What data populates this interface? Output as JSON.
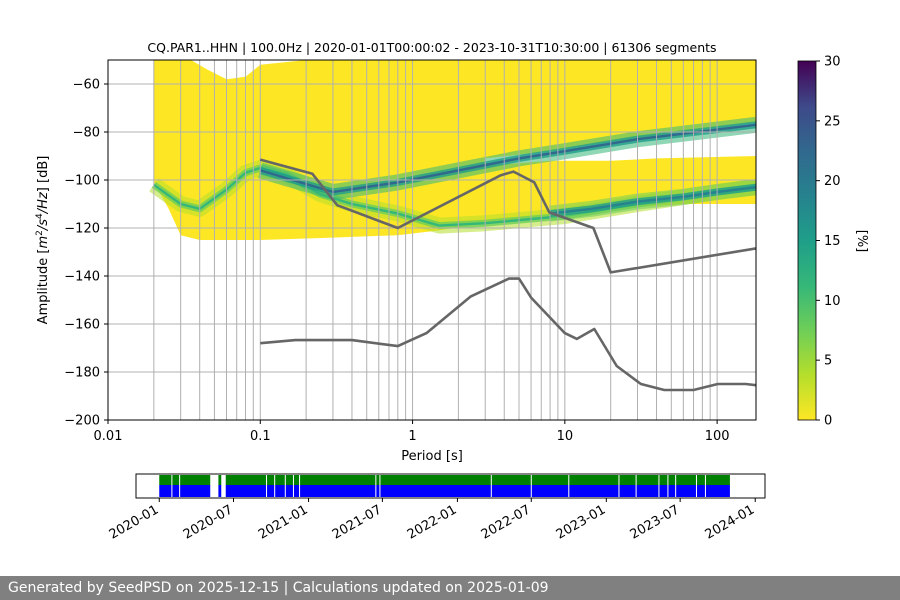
{
  "chart_data": [
    {
      "type": "heatmap",
      "title": "CQ.PAR1..HHN | 100.0Hz | 2020-01-01T00:00:02 - 2023-10-31T10:30:00 | 61306 segments",
      "xlabel": "Period [s]",
      "ylabel_parts": [
        "Amplitude [",
        "m",
        "2",
        "/",
        "s",
        "4",
        "/",
        "Hz",
        "] [dB]"
      ],
      "xscale": "log",
      "xlim": [
        0.01,
        180
      ],
      "ylim": [
        -200,
        -50
      ],
      "x_ticks": [
        {
          "value": 0.01,
          "label": "0.01"
        },
        {
          "value": 0.1,
          "label": "0.1"
        },
        {
          "value": 1,
          "label": "1"
        },
        {
          "value": 10,
          "label": "10"
        },
        {
          "value": 100,
          "label": "100"
        }
      ],
      "y_ticks": [
        {
          "value": -60,
          "label": "−60"
        },
        {
          "value": -80,
          "label": "−80"
        },
        {
          "value": -100,
          "label": "−100"
        },
        {
          "value": -120,
          "label": "−120"
        },
        {
          "value": -140,
          "label": "−140"
        },
        {
          "value": -160,
          "label": "−160"
        },
        {
          "value": -180,
          "label": "−180"
        },
        {
          "value": -200,
          "label": "−200"
        }
      ],
      "grid": true,
      "colorbar": {
        "label": "[%]",
        "range": [
          0,
          30
        ],
        "ticks": [
          "0",
          "5",
          "10",
          "15",
          "20",
          "25",
          "30"
        ],
        "colormap": "viridis"
      },
      "density_band": {
        "period_start": 0.02,
        "upper_edge": [
          [
            0.02,
            -50
          ],
          [
            0.035,
            -50
          ],
          [
            0.045,
            -54
          ],
          [
            0.06,
            -58
          ],
          [
            0.08,
            -57
          ],
          [
            0.1,
            -52
          ],
          [
            0.2,
            -50
          ],
          [
            180,
            -50
          ]
        ],
        "lower_edge": [
          [
            0.02,
            -101
          ],
          [
            0.025,
            -112
          ],
          [
            0.03,
            -123
          ],
          [
            0.04,
            -125
          ],
          [
            0.1,
            -125
          ],
          [
            0.3,
            -124
          ],
          [
            0.8,
            -123
          ],
          [
            1.5,
            -121
          ],
          [
            3,
            -118
          ],
          [
            8,
            -115
          ],
          [
            20,
            -112
          ],
          [
            60,
            -110
          ],
          [
            180,
            -110
          ]
        ],
        "secondary_gap": {
          "top": [
            [
              3,
              -91
            ],
            [
              8,
              -88
            ],
            [
              20,
              -84
            ],
            [
              60,
              -80
            ],
            [
              180,
              -76
            ]
          ],
          "bottom": [
            [
              3,
              -94
            ],
            [
              8,
              -92
            ],
            [
              20,
              -92
            ],
            [
              40,
              -91
            ],
            [
              180,
              -90
            ]
          ]
        },
        "ridges": [
          {
            "name": "microseism-hump",
            "points": [
              [
                0.02,
                -102
              ],
              [
                0.03,
                -110
              ],
              [
                0.04,
                -112
              ],
              [
                0.06,
                -104
              ],
              [
                0.08,
                -97
              ],
              [
                0.1,
                -95
              ],
              [
                0.15,
                -98
              ],
              [
                0.25,
                -106
              ],
              [
                0.4,
                -110
              ],
              [
                0.8,
                -114
              ],
              [
                1.5,
                -119
              ],
              [
                3,
                -118
              ],
              [
                10,
                -115
              ],
              [
                30,
                -110
              ],
              [
                100,
                -105
              ],
              [
                180,
                -103
              ]
            ],
            "value": 10
          },
          {
            "name": "upper-line",
            "points": [
              [
                0.1,
                -96
              ],
              [
                0.3,
                -105
              ],
              [
                0.8,
                -101
              ],
              [
                2,
                -96
              ],
              [
                5,
                -91
              ],
              [
                10,
                -88
              ],
              [
                30,
                -83
              ],
              [
                100,
                -79
              ],
              [
                180,
                -77
              ]
            ],
            "value": 22
          },
          {
            "name": "lower-line",
            "points": [
              [
                8,
                -114
              ],
              [
                15,
                -112
              ],
              [
                30,
                -109
              ],
              [
                60,
                -107
              ],
              [
                100,
                -105
              ],
              [
                180,
                -103
              ]
            ],
            "value": 20
          }
        ]
      },
      "noise_models": [
        {
          "name": "NHNM",
          "x": [
            0.1,
            0.22,
            0.32,
            0.8,
            3.8,
            4.6,
            6.3,
            7.9,
            15.4,
            20,
            180
          ],
          "y": [
            -91.5,
            -97.4,
            -110.5,
            -120,
            -98,
            -96.5,
            -101,
            -113.5,
            -120,
            -138.5,
            -128.5
          ]
        },
        {
          "name": "NLNM",
          "x": [
            0.1,
            0.17,
            0.4,
            0.8,
            1.24,
            2.4,
            4.3,
            5,
            6,
            10,
            12,
            15.6,
            21.9,
            31.6,
            45,
            70,
            101,
            154,
            180
          ],
          "y": [
            -168,
            -166.7,
            -166.7,
            -169.2,
            -163.7,
            -148.6,
            -141.1,
            -141.1,
            -149,
            -163.8,
            -166.2,
            -162.1,
            -177.5,
            -185,
            -187.5,
            -187.5,
            -185,
            -185,
            -185.5
          ]
        }
      ],
      "vertical_lines": [
        0.02,
        0.03,
        0.04,
        0.05,
        0.06,
        0.07,
        0.08,
        0.09,
        0.2,
        0.3,
        0.4,
        0.5,
        0.6,
        0.7,
        0.8,
        0.9,
        2,
        3,
        4,
        5,
        6,
        7,
        8,
        9,
        20,
        30,
        40,
        50,
        60,
        70,
        80,
        90
      ]
    },
    {
      "type": "timeline",
      "date_range": [
        "2019-11-05",
        "2024-01-25"
      ],
      "data_range": [
        "2020-01-01",
        "2023-10-31"
      ],
      "tick_labels": [
        {
          "date": "2020-01-01",
          "label": "2020-01"
        },
        {
          "date": "2020-07-01",
          "label": "2020-07"
        },
        {
          "date": "2021-01-01",
          "label": "2021-01"
        },
        {
          "date": "2021-07-01",
          "label": "2021-07"
        },
        {
          "date": "2022-01-01",
          "label": "2022-01"
        },
        {
          "date": "2022-07-01",
          "label": "2022-07"
        },
        {
          "date": "2023-01-01",
          "label": "2023-01"
        },
        {
          "date": "2023-07-01",
          "label": "2023-07"
        },
        {
          "date": "2024-01-01",
          "label": "2024-01"
        }
      ],
      "gaps": [
        [
          "2020-05-05",
          "2020-05-25"
        ],
        [
          "2020-06-01",
          "2020-06-12"
        ]
      ],
      "small_gaps": [
        "2020-02-01",
        "2020-02-20",
        "2020-09-20",
        "2020-10-10",
        "2020-11-05",
        "2020-11-25",
        "2020-12-10",
        "2021-06-15",
        "2021-06-25",
        "2022-03-25",
        "2022-07-01",
        "2022-10-01",
        "2023-02-01",
        "2023-03-15",
        "2023-05-10",
        "2023-06-01",
        "2023-06-20",
        "2023-08-10",
        "2023-09-01"
      ],
      "colors": {
        "top": "#008000",
        "bottom": "#0000ff"
      }
    }
  ],
  "footer": {
    "text": "Generated by SeedPSD on 2025-12-15 | Calculations updated on 2025-01-09"
  }
}
